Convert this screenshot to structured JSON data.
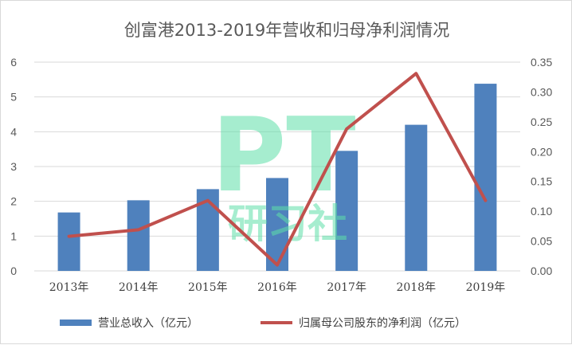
{
  "chart_data": {
    "type": "bar",
    "title": "创富港2013-2019年营收和归母净利润情况",
    "categories": [
      "2013年",
      "2014年",
      "2015年",
      "2016年",
      "2017年",
      "2018年",
      "2019年"
    ],
    "series": [
      {
        "name": "营业总收入（亿元）",
        "type": "bar",
        "axis": "left",
        "color": "#4f81bd",
        "values": [
          1.68,
          2.03,
          2.35,
          2.67,
          3.45,
          4.2,
          5.38
        ]
      },
      {
        "name": "归属母公司股东的净利润（亿元）",
        "type": "line",
        "axis": "right",
        "color": "#c0504d",
        "values": [
          0.058,
          0.069,
          0.118,
          0.01,
          0.238,
          0.331,
          0.118
        ]
      }
    ],
    "y_left": {
      "min": 0,
      "max": 6,
      "ticks": [
        "0",
        "1",
        "2",
        "3",
        "4",
        "5",
        "6"
      ]
    },
    "y_right": {
      "min": 0,
      "max": 0.35,
      "ticks": [
        "0.00",
        "0.05",
        "0.10",
        "0.15",
        "0.20",
        "0.25",
        "0.30",
        "0.35"
      ]
    },
    "grid": true,
    "legend_position": "bottom"
  },
  "watermark": {
    "big": "PT",
    "small": "研习社",
    "color": "#5fe0a8"
  }
}
